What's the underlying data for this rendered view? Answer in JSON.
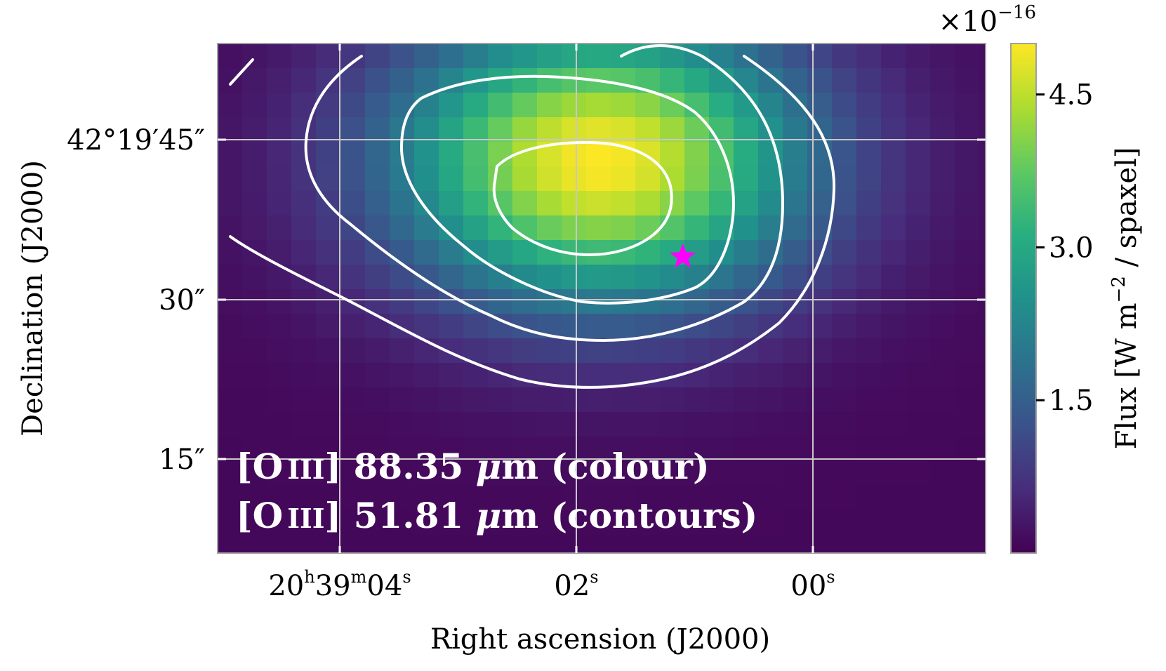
{
  "chart_data": {
    "type": "heatmap",
    "xlabel": "Right ascension (J2000)",
    "ylabel": "Declination (J2000)",
    "x_ticks": [
      {
        "value_s": 4,
        "h": "20",
        "m": "39",
        "s": "04"
      },
      {
        "value_s": 2,
        "s": "02"
      },
      {
        "value_s": 0,
        "s": "00"
      }
    ],
    "y_ticks": [
      {
        "value_arcsec": 45,
        "label": "42°19′45″"
      },
      {
        "value_arcsec": 30,
        "label": "30″"
      },
      {
        "value_arcsec": 15,
        "label": "15″"
      }
    ],
    "colorbar": {
      "label": "Flux [W m−2 / spaxel]",
      "label_prefix": "Flux [W m",
      "label_exp": "−2",
      "label_suffix": " / spaxel]",
      "multiplier": "×10",
      "multiplier_exp": "−16",
      "ticks": [
        "1.5",
        "3.0",
        "4.5"
      ],
      "tick_values": [
        1.5,
        3.0,
        4.5
      ],
      "range": [
        0.0,
        5.0
      ],
      "colormap": "viridis"
    },
    "colour_map": {
      "peak_flux": 5.0,
      "peak_position": {
        "ra_s": 1.8,
        "dec_arcsec": 43
      },
      "background_flux": 0.1
    },
    "contours": {
      "color": "#ffffff",
      "levels": 5
    },
    "star_marker": {
      "color": "#ff00ff",
      "ra_s": 1.1,
      "dec_arcsec": 34
    },
    "annotation": {
      "line1": "[O III] 88.35 μm (colour)",
      "line1_a": "[O",
      "line1_ion": "III",
      "line1_b": "] 88.35 ",
      "line1_mu": "μ",
      "line1_c": "m (colour)",
      "line2": "[O III] 51.81 μm (contours)",
      "line2_a": "[O",
      "line2_ion": "III",
      "line2_b": "] 51.81 ",
      "line2_mu": "μ",
      "line2_c": "m (contours)"
    }
  }
}
